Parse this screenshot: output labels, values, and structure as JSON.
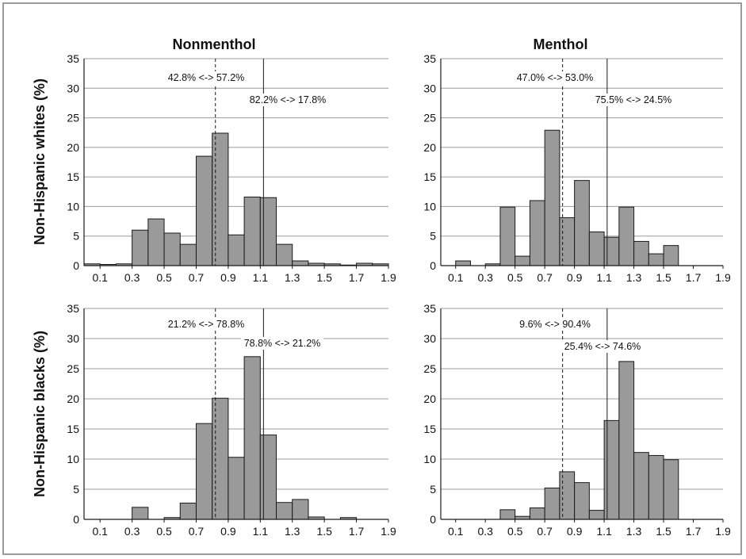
{
  "figure": {
    "col_titles": [
      "Nonmenthol",
      "Menthol"
    ],
    "row_titles": [
      "Non-Hispanic whites (%)",
      "Non-Hispanic blacks (%)"
    ]
  },
  "chart_data": [
    {
      "type": "bar",
      "title": "Nonmenthol",
      "row_label": "Non-Hispanic whites (%)",
      "bin_width": 0.1,
      "bin_starts": [
        0.0,
        0.1,
        0.2,
        0.3,
        0.4,
        0.5,
        0.6,
        0.7,
        0.8,
        0.9,
        1.0,
        1.1,
        1.2,
        1.3,
        1.4,
        1.5,
        1.6,
        1.7,
        1.8
      ],
      "values": [
        0.3,
        0.2,
        0.3,
        6.0,
        7.9,
        5.5,
        3.6,
        18.5,
        22.4,
        5.2,
        11.6,
        11.5,
        3.6,
        0.8,
        0.4,
        0.3,
        0.1,
        0.4,
        0.3
      ],
      "xlim": [
        0.0,
        1.9
      ],
      "ylim": [
        0,
        35
      ],
      "x_ticks": [
        "0.1",
        "0.3",
        "0.5",
        "0.7",
        "0.9",
        "1.1",
        "1.3",
        "1.5",
        "1.7",
        "1.9"
      ],
      "y_ticks": [
        "0",
        "5",
        "10",
        "15",
        "20",
        "25",
        "30",
        "35"
      ],
      "grid": true,
      "dashed_line_x": 0.82,
      "solid_line_x": 1.12,
      "annotations": [
        "42.8% <-> 57.2%",
        "82.2% <-> 17.8%"
      ]
    },
    {
      "type": "bar",
      "title": "Menthol",
      "row_label": "Non-Hispanic whites (%)",
      "bin_width": 0.1,
      "bin_starts": [
        0.0,
        0.1,
        0.2,
        0.3,
        0.4,
        0.5,
        0.6,
        0.7,
        0.8,
        0.9,
        1.0,
        1.1,
        1.2,
        1.3,
        1.4,
        1.5,
        1.6,
        1.7,
        1.8
      ],
      "values": [
        0.0,
        0.8,
        0.0,
        0.3,
        9.9,
        1.6,
        11.0,
        22.9,
        8.1,
        14.4,
        5.7,
        4.8,
        9.9,
        4.1,
        2.0,
        3.4,
        0.0,
        0.0,
        0.0
      ],
      "xlim": [
        0.0,
        1.9
      ],
      "ylim": [
        0,
        35
      ],
      "x_ticks": [
        "0.1",
        "0.3",
        "0.5",
        "0.7",
        "0.9",
        "1.1",
        "1.3",
        "1.5",
        "1.7",
        "1.9"
      ],
      "y_ticks": [
        "0",
        "5",
        "10",
        "15",
        "20",
        "25",
        "30",
        "35"
      ],
      "grid": true,
      "dashed_line_x": 0.82,
      "solid_line_x": 1.12,
      "annotations": [
        "47.0% <-> 53.0%",
        "75.5% <-> 24.5%"
      ]
    },
    {
      "type": "bar",
      "title": "",
      "row_label": "Non-Hispanic blacks (%)",
      "bin_width": 0.1,
      "bin_starts": [
        0.0,
        0.1,
        0.2,
        0.3,
        0.4,
        0.5,
        0.6,
        0.7,
        0.8,
        0.9,
        1.0,
        1.1,
        1.2,
        1.3,
        1.4,
        1.5,
        1.6,
        1.7,
        1.8
      ],
      "values": [
        0.0,
        0.0,
        0.0,
        2.0,
        0.0,
        0.3,
        2.7,
        15.9,
        20.1,
        10.3,
        27.0,
        14.0,
        2.8,
        3.3,
        0.4,
        0.0,
        0.3,
        0.0,
        0.0
      ],
      "xlim": [
        0.0,
        1.9
      ],
      "ylim": [
        0,
        35
      ],
      "x_ticks": [
        "0.1",
        "0.3",
        "0.5",
        "0.7",
        "0.9",
        "1.1",
        "1.3",
        "1.5",
        "1.7",
        "1.9"
      ],
      "y_ticks": [
        "0",
        "5",
        "10",
        "15",
        "20",
        "25",
        "30",
        "35"
      ],
      "grid": true,
      "dashed_line_x": 0.82,
      "solid_line_x": 1.12,
      "annotations": [
        "21.2% <-> 78.8%",
        "78.8% <-> 21.2%"
      ]
    },
    {
      "type": "bar",
      "title": "",
      "row_label": "Non-Hispanic blacks (%)",
      "bin_width": 0.1,
      "bin_starts": [
        0.0,
        0.1,
        0.2,
        0.3,
        0.4,
        0.5,
        0.6,
        0.7,
        0.8,
        0.9,
        1.0,
        1.1,
        1.2,
        1.3,
        1.4,
        1.5,
        1.6,
        1.7,
        1.8
      ],
      "values": [
        0.0,
        0.0,
        0.0,
        0.0,
        1.6,
        0.5,
        1.9,
        5.2,
        7.9,
        6.1,
        1.5,
        16.4,
        26.2,
        11.1,
        10.6,
        9.9,
        0.0,
        0.0,
        0.0
      ],
      "xlim": [
        0.0,
        1.9
      ],
      "ylim": [
        0,
        35
      ],
      "x_ticks": [
        "0.1",
        "0.3",
        "0.5",
        "0.7",
        "0.9",
        "1.1",
        "1.3",
        "1.5",
        "1.7",
        "1.9"
      ],
      "y_ticks": [
        "0",
        "5",
        "10",
        "15",
        "20",
        "25",
        "30",
        "35"
      ],
      "grid": true,
      "dashed_line_x": 0.82,
      "solid_line_x": 1.12,
      "annotations": [
        "9.6% <-> 90.4%",
        "25.4% <-> 74.6%"
      ]
    }
  ],
  "colors": {
    "bar_fill": "#9a9a9a",
    "bar_stroke": "#1a1a1a",
    "grid": "#9c9c9c",
    "axis": "#1a1a1a",
    "text": "#111111"
  }
}
